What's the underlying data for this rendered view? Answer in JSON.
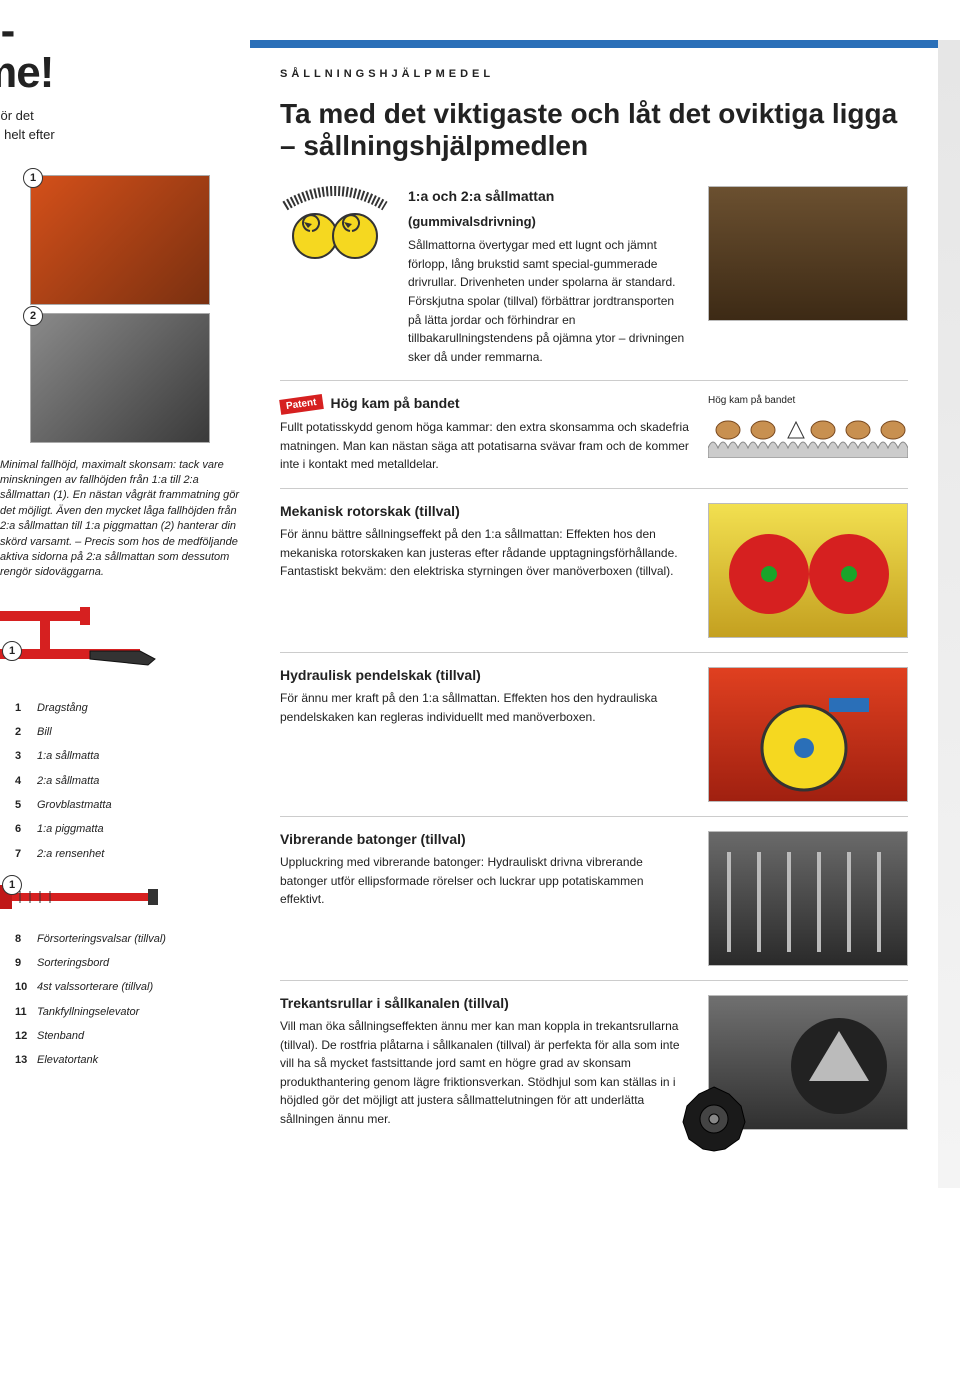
{
  "left": {
    "big_title": "lös-\nmme!",
    "intro": "anter gör det\nagaren helt efter",
    "caption": "Minimal fallhöjd, maximalt skonsam: tack vare minskningen av fallhöjden från 1:a till 2:a sållmattan (1). En nästan vågrät frammatning gör det möjligt. Även den mycket låga fallhöjden från 2:a sållmattan till 1:a piggmattan (2) hanterar din skörd varsamt. – Precis som hos de medföljande aktiva sidorna på 2:a sållmattan som dessutom rengör sidoväggarna.",
    "badge1": "1",
    "badge2": "2",
    "dia_badge1": "1",
    "dia_badge2": "1",
    "legend": [
      {
        "n": "1",
        "t": "Dragstång"
      },
      {
        "n": "2",
        "t": "Bill"
      },
      {
        "n": "3",
        "t": "1:a sållmatta"
      },
      {
        "n": "4",
        "t": "2:a sållmatta"
      },
      {
        "n": "5",
        "t": "Grovblastmatta"
      },
      {
        "n": "6",
        "t": "1:a piggmatta"
      },
      {
        "n": "7",
        "t": "2:a rensenhet"
      },
      {
        "n": "8",
        "t": "Försorteringsvalsar (tillval)"
      },
      {
        "n": "9",
        "t": "Sorteringsbord"
      },
      {
        "n": "10",
        "t": "4st valssorterare (tillval)"
      },
      {
        "n": "11",
        "t": "Tankfyllningselevator"
      },
      {
        "n": "12",
        "t": "Stenband"
      },
      {
        "n": "13",
        "t": "Elevatortank"
      }
    ]
  },
  "right": {
    "kicker": "SÅLLNINGSHJÄLPMEDEL",
    "headline": "Ta med det viktigaste och låt det oviktiga ligga – sållningshjälpmedlen",
    "s1": {
      "title": "1:a och 2:a sållmattan",
      "sub": "(gummivalsdrivning)",
      "body": "Sållmattorna övertygar med ett lugnt och jämnt förlopp, lång brukstid samt special-gummerade drivrullar. Drivenheten under spolarna är standard. Förskjutna spolar (tillval) förbättrar jordtransporten på lätta jordar och förhindrar en tillbakarullningstendens på ojämna ytor – drivningen sker då under remmarna."
    },
    "s2": {
      "patent": "Patent",
      "title": "Hög kam på bandet",
      "body": "Fullt potatisskydd genom höga kammar: den extra skonsamma och skadefria matningen. Man kan nästan säga att potatisarna svävar fram och de kommer inte i kontakt med metalldelar.",
      "caption": "Hög kam på bandet"
    },
    "s3": {
      "title": "Mekanisk rotorskak (tillval)",
      "body": "För ännu bättre sållningseffekt på den 1:a sållmattan: Effekten hos den mekaniska rotor­skaken kan justeras efter rådande upptagnings­förhållande. Fantastiskt bekväm: den elektriska styrningen över manöverboxen (tillval)."
    },
    "s4": {
      "title": "Hydraulisk pendelskak (tillval)",
      "body": "För ännu mer kraft på den 1:a sållmattan. Effekten hos den hydrauliska pendelskaken kan regleras individuellt med manöverboxen."
    },
    "s5": {
      "title": "Vibrerande batonger (tillval)",
      "body": "Uppluckring med vibrerande batonger: Hydrauliskt drivna vibrerande batonger utför ellipsformade rörelser och luckrar upp potatiskammen effektivt."
    },
    "s6": {
      "title": "Trekantsrullar i sållkanalen (tillval)",
      "body": "Vill man öka sållningseffekten ännu mer kan man koppla in trekantsrullarna (tillval). De rostfria plåtarna i sållkanalen (tillval) är perfekta för alla som inte vill ha så mycket fastsittande jord samt en högre grad av skonsam produkthantering genom lägre friktionsverkan. Stödhjul som kan ställas in i höjdled gör det möjligt att justera sållmattelutningen för att underlätta sållningen ännu mer."
    }
  },
  "colors": {
    "red": "#d62020",
    "blue": "#2a6fb8",
    "yellow": "#f5d820",
    "green": "#1aa52a"
  }
}
